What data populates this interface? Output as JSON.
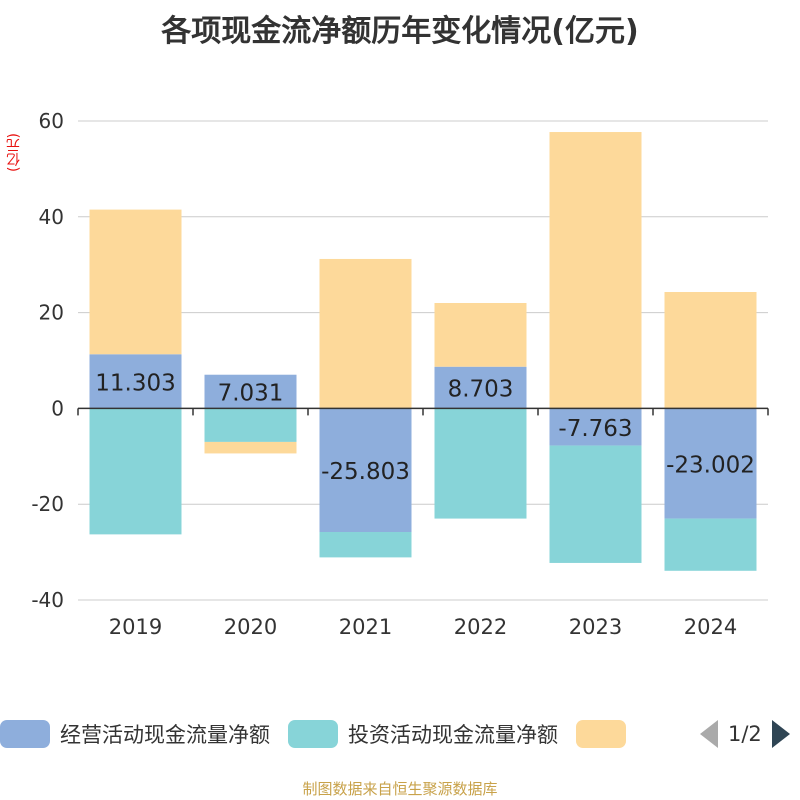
{
  "chart_data": {
    "type": "bar",
    "stacked": true,
    "title": "各项现金流净额历年变化情况(亿元)",
    "ylabel": "(亿元)",
    "categories": [
      "2019",
      "2020",
      "2021",
      "2022",
      "2023",
      "2024"
    ],
    "ylim": [
      -40,
      60
    ],
    "yticks": [
      60,
      40,
      20,
      0,
      -20,
      -40
    ],
    "series": [
      {
        "name": "经营活动现金流量净额",
        "color": "#8eaedc",
        "values": [
          11.303,
          7.031,
          -25.803,
          8.703,
          -7.763,
          -23.002
        ]
      },
      {
        "name": "投资活动现金流量净额",
        "color": "#87d4d8",
        "values": [
          -26.3,
          -7.0,
          -5.3,
          -23.0,
          -24.5,
          -10.9
        ]
      },
      {
        "name": "",
        "color": "#fdd99a",
        "values": [
          30.2,
          -2.4,
          31.2,
          13.3,
          57.7,
          24.3
        ]
      }
    ],
    "data_labels": [
      "11.303",
      "7.031",
      "-25.803",
      "8.703",
      "-7.763",
      "-23.002"
    ]
  },
  "legend": {
    "items": [
      {
        "label": "经营活动现金流量净额",
        "color": "#8eaedc"
      },
      {
        "label": "投资活动现金流量净额",
        "color": "#87d4d8"
      },
      {
        "label": "",
        "color": "#fdd99a"
      }
    ],
    "page": "1/2"
  },
  "source": "制图数据来自恒生聚源数据库"
}
